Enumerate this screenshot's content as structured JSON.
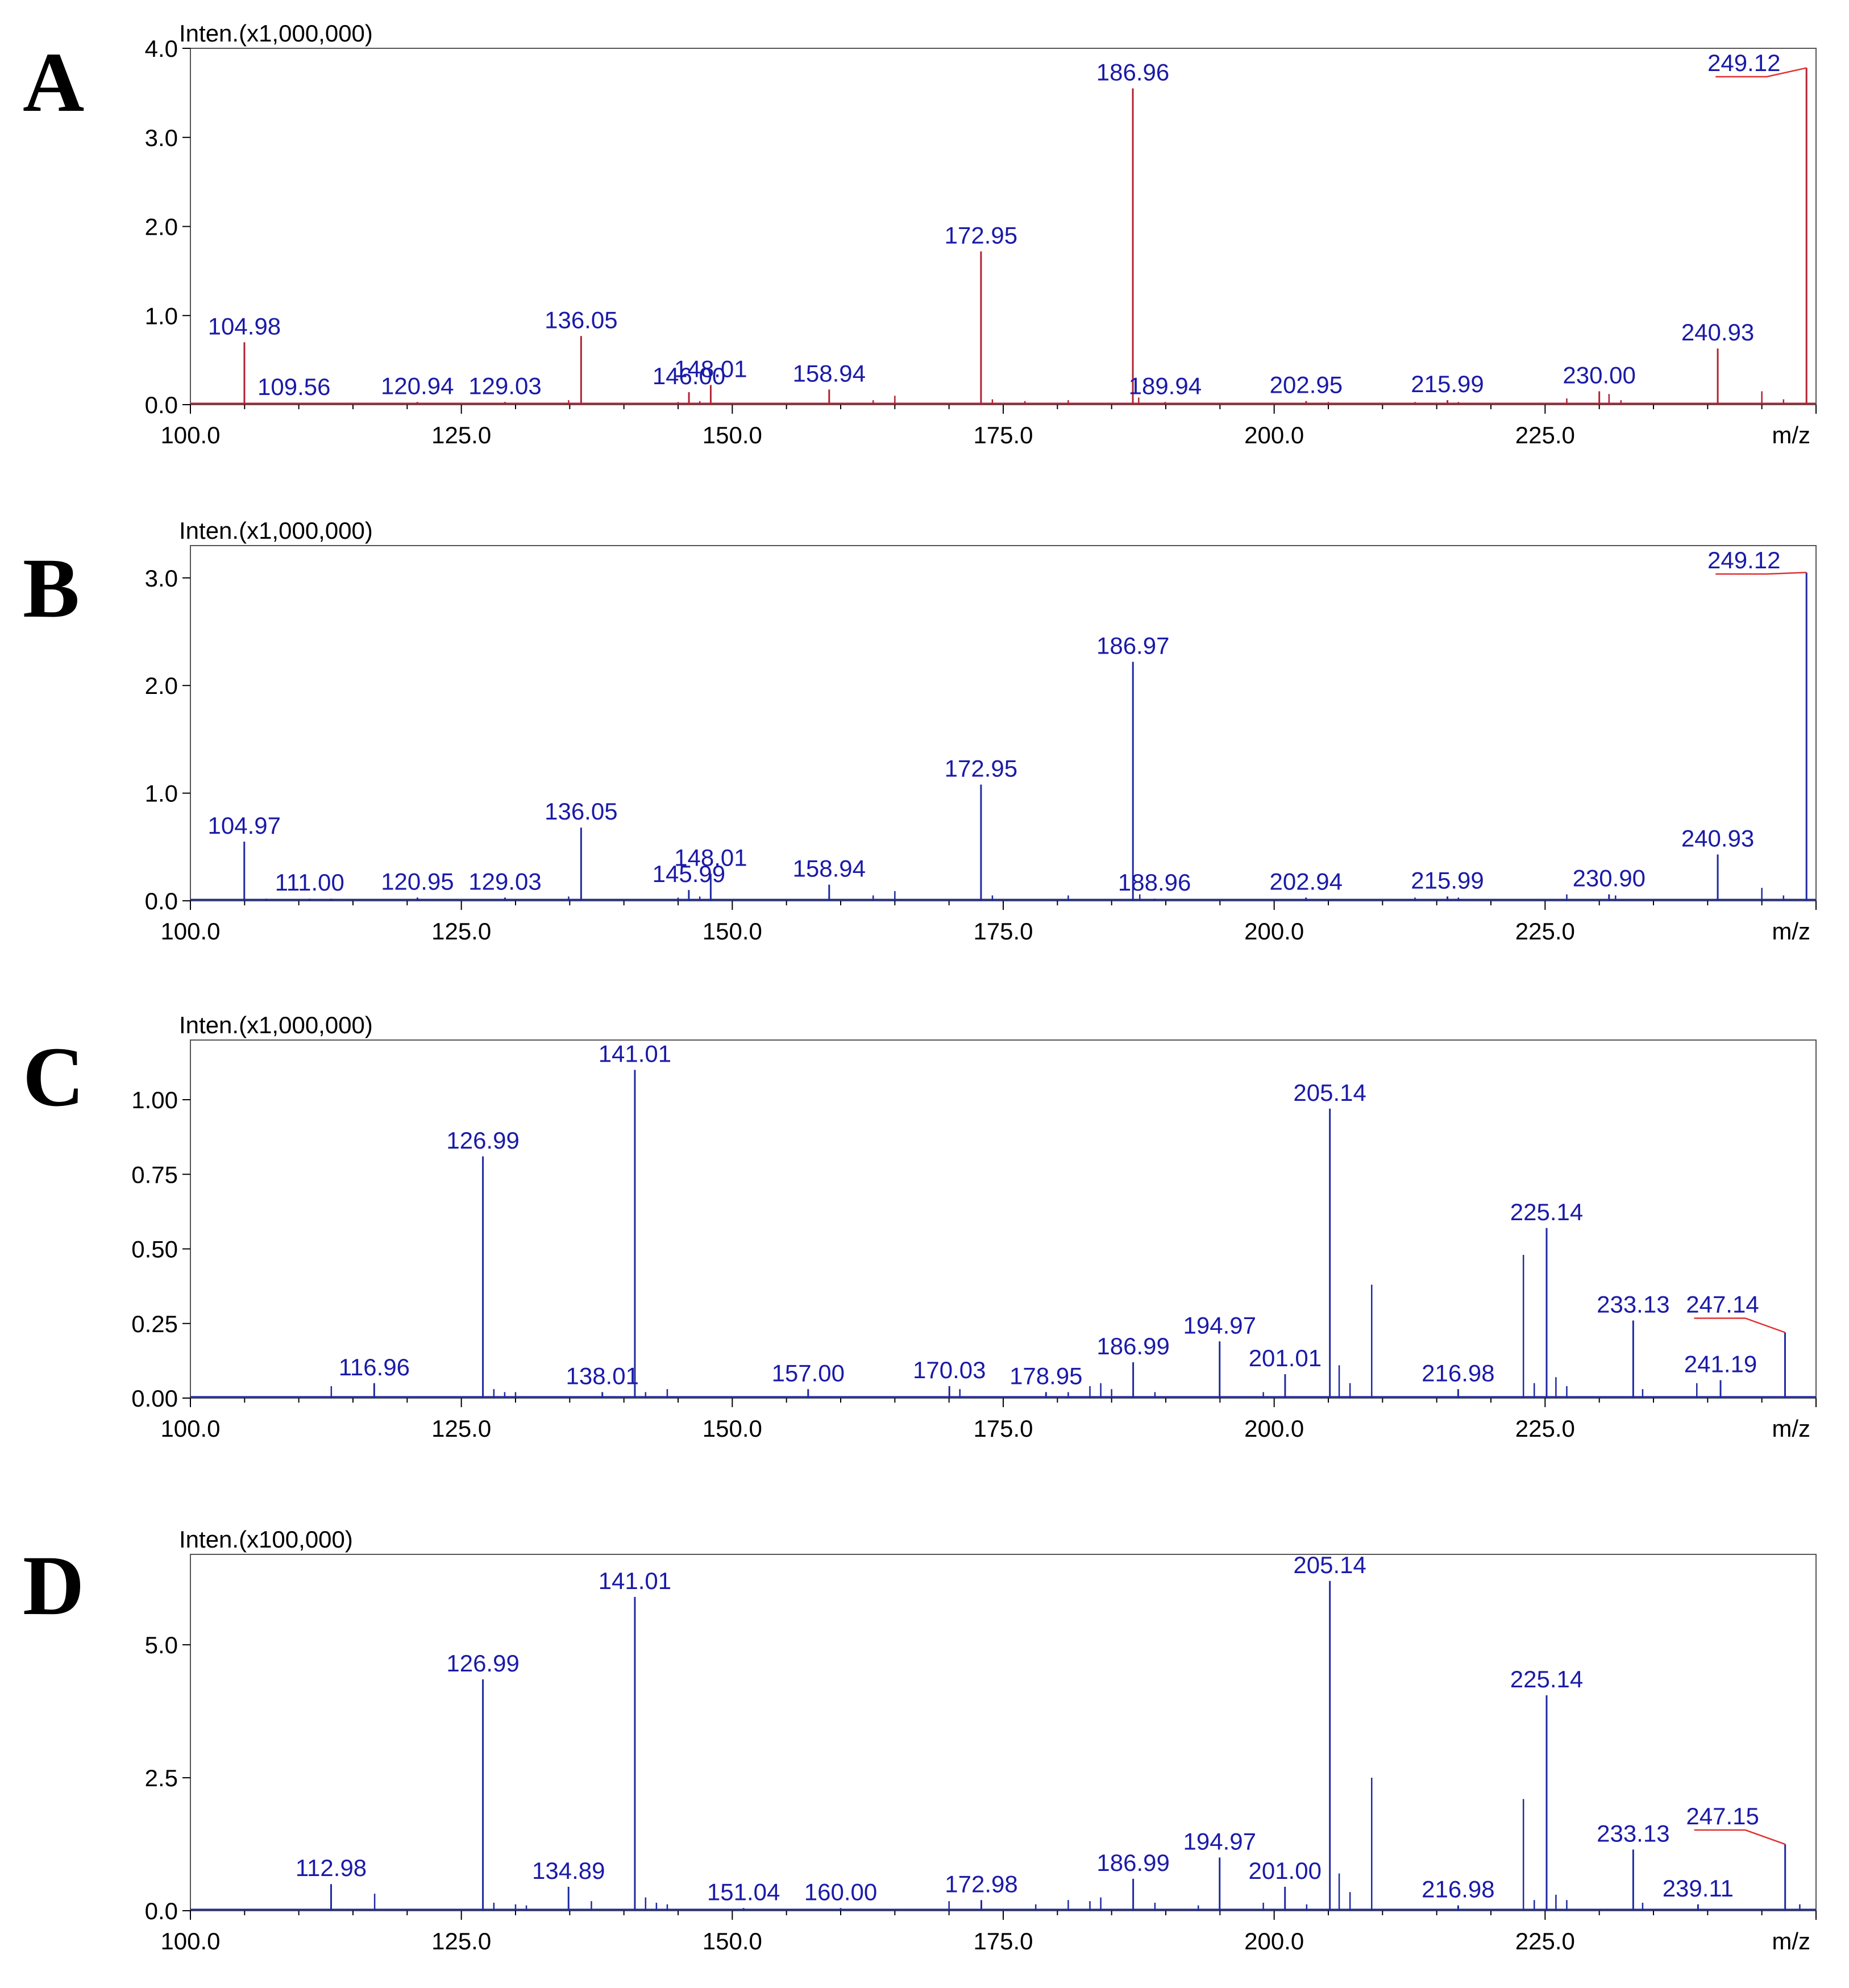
{
  "figure": {
    "colors": {
      "axis": "#000000",
      "label": "#1a1aa8",
      "peak_red": "#b22234",
      "peak_blue": "#1f2aa0",
      "annotation_red": "#e03030"
    }
  },
  "chart_data": [
    {
      "type": "bar",
      "panel": "A",
      "ylabel": "Inten.(x1,000,000)",
      "xlabel": "m/z",
      "xlim": [
        100,
        250
      ],
      "ylim": [
        0,
        4.0
      ],
      "yticks": [
        0.0,
        1.0,
        2.0,
        3.0,
        4.0
      ],
      "ytick_labels": [
        "0.0",
        "1.0",
        "2.0",
        "3.0",
        "4.0"
      ],
      "xticks": [
        100,
        125,
        150,
        175,
        200,
        225
      ],
      "xtick_labels": [
        "100.0",
        "125.0",
        "150.0",
        "175.0",
        "200.0",
        "225.0"
      ],
      "series_color": "#b22234",
      "peaks": [
        {
          "mz": 104.98,
          "intensity": 0.7,
          "label": "104.98"
        },
        {
          "mz": 109.56,
          "intensity": 0.02,
          "label": "109.56"
        },
        {
          "mz": 120.94,
          "intensity": 0.03,
          "label": "120.94"
        },
        {
          "mz": 129.03,
          "intensity": 0.03,
          "label": "129.03"
        },
        {
          "mz": 136.05,
          "intensity": 0.77,
          "label": "136.05"
        },
        {
          "mz": 146.0,
          "intensity": 0.14,
          "label": "146.00"
        },
        {
          "mz": 148.01,
          "intensity": 0.22,
          "label": "148.01"
        },
        {
          "mz": 158.94,
          "intensity": 0.17,
          "label": "158.94"
        },
        {
          "mz": 172.95,
          "intensity": 1.72,
          "label": "172.95"
        },
        {
          "mz": 186.96,
          "intensity": 3.55,
          "label": "186.96"
        },
        {
          "mz": 189.94,
          "intensity": 0.03,
          "label": "189.94"
        },
        {
          "mz": 202.95,
          "intensity": 0.04,
          "label": "202.95"
        },
        {
          "mz": 215.99,
          "intensity": 0.05,
          "label": "215.99"
        },
        {
          "mz": 230.0,
          "intensity": 0.15,
          "label": "230.00"
        },
        {
          "mz": 240.93,
          "intensity": 0.63,
          "label": "240.93"
        },
        {
          "mz": 249.12,
          "intensity": 3.78,
          "label": "249.12"
        },
        {
          "mz": 107.0,
          "intensity": 0.02
        },
        {
          "mz": 113.0,
          "intensity": 0.02
        },
        {
          "mz": 117.0,
          "intensity": 0.02
        },
        {
          "mz": 134.9,
          "intensity": 0.05
        },
        {
          "mz": 145.0,
          "intensity": 0.03
        },
        {
          "mz": 147.0,
          "intensity": 0.04
        },
        {
          "mz": 163.0,
          "intensity": 0.05
        },
        {
          "mz": 165.0,
          "intensity": 0.1
        },
        {
          "mz": 174.0,
          "intensity": 0.06
        },
        {
          "mz": 177.0,
          "intensity": 0.04
        },
        {
          "mz": 181.0,
          "intensity": 0.05
        },
        {
          "mz": 187.5,
          "intensity": 0.08
        },
        {
          "mz": 205.0,
          "intensity": 0.03
        },
        {
          "mz": 213.0,
          "intensity": 0.03
        },
        {
          "mz": 217.0,
          "intensity": 0.03
        },
        {
          "mz": 227.0,
          "intensity": 0.07
        },
        {
          "mz": 230.9,
          "intensity": 0.12
        },
        {
          "mz": 232.0,
          "intensity": 0.05
        },
        {
          "mz": 245.0,
          "intensity": 0.15
        },
        {
          "mz": 247.0,
          "intensity": 0.06
        }
      ]
    },
    {
      "type": "bar",
      "panel": "B",
      "ylabel": "Inten.(x1,000,000)",
      "xlabel": "m/z",
      "xlim": [
        100,
        250
      ],
      "ylim": [
        0,
        3.3
      ],
      "yticks": [
        0.0,
        1.0,
        2.0,
        3.0
      ],
      "ytick_labels": [
        "0.0",
        "1.0",
        "2.0",
        "3.0"
      ],
      "xticks": [
        100,
        125,
        150,
        175,
        200,
        225
      ],
      "xtick_labels": [
        "100.0",
        "125.0",
        "150.0",
        "175.0",
        "200.0",
        "225.0"
      ],
      "series_color": "#1f2aa0",
      "peaks": [
        {
          "mz": 104.97,
          "intensity": 0.55,
          "label": "104.97"
        },
        {
          "mz": 111.0,
          "intensity": 0.02,
          "label": "111.00"
        },
        {
          "mz": 120.95,
          "intensity": 0.03,
          "label": "120.95"
        },
        {
          "mz": 129.03,
          "intensity": 0.03,
          "label": "129.03"
        },
        {
          "mz": 136.05,
          "intensity": 0.68,
          "label": "136.05"
        },
        {
          "mz": 145.99,
          "intensity": 0.1,
          "label": "145.99"
        },
        {
          "mz": 148.01,
          "intensity": 0.25,
          "label": "148.01"
        },
        {
          "mz": 158.94,
          "intensity": 0.15,
          "label": "158.94"
        },
        {
          "mz": 172.95,
          "intensity": 1.08,
          "label": "172.95"
        },
        {
          "mz": 186.97,
          "intensity": 2.22,
          "label": "186.97"
        },
        {
          "mz": 188.96,
          "intensity": 0.02,
          "label": "188.96"
        },
        {
          "mz": 202.94,
          "intensity": 0.03,
          "label": "202.94"
        },
        {
          "mz": 215.99,
          "intensity": 0.04,
          "label": "215.99"
        },
        {
          "mz": 230.9,
          "intensity": 0.06,
          "label": "230.90"
        },
        {
          "mz": 240.93,
          "intensity": 0.43,
          "label": "240.93"
        },
        {
          "mz": 249.12,
          "intensity": 3.05,
          "label": "249.12"
        },
        {
          "mz": 107.0,
          "intensity": 0.02
        },
        {
          "mz": 113.0,
          "intensity": 0.02
        },
        {
          "mz": 134.9,
          "intensity": 0.04
        },
        {
          "mz": 145.0,
          "intensity": 0.03
        },
        {
          "mz": 147.0,
          "intensity": 0.04
        },
        {
          "mz": 163.0,
          "intensity": 0.05
        },
        {
          "mz": 165.0,
          "intensity": 0.09
        },
        {
          "mz": 174.0,
          "intensity": 0.05
        },
        {
          "mz": 181.0,
          "intensity": 0.05
        },
        {
          "mz": 187.6,
          "intensity": 0.06
        },
        {
          "mz": 213.0,
          "intensity": 0.03
        },
        {
          "mz": 217.0,
          "intensity": 0.03
        },
        {
          "mz": 227.0,
          "intensity": 0.06
        },
        {
          "mz": 231.5,
          "intensity": 0.05
        },
        {
          "mz": 245.0,
          "intensity": 0.12
        },
        {
          "mz": 247.0,
          "intensity": 0.05
        }
      ]
    },
    {
      "type": "bar",
      "panel": "C",
      "ylabel": "Inten.(x1,000,000)",
      "xlabel": "m/z",
      "xlim": [
        100,
        250
      ],
      "ylim": [
        0,
        1.2
      ],
      "yticks": [
        0.0,
        0.25,
        0.5,
        0.75,
        1.0
      ],
      "ytick_labels": [
        "0.00",
        "0.25",
        "0.50",
        "0.75",
        "1.00"
      ],
      "xticks": [
        100,
        125,
        150,
        175,
        200,
        225
      ],
      "xtick_labels": [
        "100.0",
        "125.0",
        "150.0",
        "175.0",
        "200.0",
        "225.0"
      ],
      "series_color": "#1f2aa0",
      "peaks": [
        {
          "mz": 116.96,
          "intensity": 0.05,
          "label": "116.96"
        },
        {
          "mz": 126.99,
          "intensity": 0.81,
          "label": "126.99"
        },
        {
          "mz": 138.01,
          "intensity": 0.02,
          "label": "138.01"
        },
        {
          "mz": 141.01,
          "intensity": 1.1,
          "label": "141.01"
        },
        {
          "mz": 157.0,
          "intensity": 0.03,
          "label": "157.00"
        },
        {
          "mz": 170.03,
          "intensity": 0.04,
          "label": "170.03"
        },
        {
          "mz": 178.95,
          "intensity": 0.02,
          "label": "178.95"
        },
        {
          "mz": 186.99,
          "intensity": 0.12,
          "label": "186.99"
        },
        {
          "mz": 194.97,
          "intensity": 0.19,
          "label": "194.97"
        },
        {
          "mz": 201.01,
          "intensity": 0.08,
          "label": "201.01"
        },
        {
          "mz": 205.14,
          "intensity": 0.97,
          "label": "205.14"
        },
        {
          "mz": 216.98,
          "intensity": 0.03,
          "label": "216.98"
        },
        {
          "mz": 225.14,
          "intensity": 0.57,
          "label": "225.14"
        },
        {
          "mz": 233.13,
          "intensity": 0.26,
          "label": "233.13"
        },
        {
          "mz": 241.19,
          "intensity": 0.06,
          "label": "241.19"
        },
        {
          "mz": 247.14,
          "intensity": 0.22,
          "label": "247.14"
        },
        {
          "mz": 113.0,
          "intensity": 0.04
        },
        {
          "mz": 128.0,
          "intensity": 0.03
        },
        {
          "mz": 129.0,
          "intensity": 0.02
        },
        {
          "mz": 130.0,
          "intensity": 0.02
        },
        {
          "mz": 142.0,
          "intensity": 0.02
        },
        {
          "mz": 144.0,
          "intensity": 0.03
        },
        {
          "mz": 171.0,
          "intensity": 0.03
        },
        {
          "mz": 181.0,
          "intensity": 0.02
        },
        {
          "mz": 183.0,
          "intensity": 0.04
        },
        {
          "mz": 184.0,
          "intensity": 0.05
        },
        {
          "mz": 185.0,
          "intensity": 0.03
        },
        {
          "mz": 189.0,
          "intensity": 0.02
        },
        {
          "mz": 199.0,
          "intensity": 0.02
        },
        {
          "mz": 206.0,
          "intensity": 0.11
        },
        {
          "mz": 207.0,
          "intensity": 0.05
        },
        {
          "mz": 209.0,
          "intensity": 0.38
        },
        {
          "mz": 223.0,
          "intensity": 0.48
        },
        {
          "mz": 224.0,
          "intensity": 0.05
        },
        {
          "mz": 226.0,
          "intensity": 0.07
        },
        {
          "mz": 227.0,
          "intensity": 0.04
        },
        {
          "mz": 234.0,
          "intensity": 0.03
        },
        {
          "mz": 239.0,
          "intensity": 0.05
        }
      ]
    },
    {
      "type": "bar",
      "panel": "D",
      "ylabel": "Inten.(x100,000)",
      "xlabel": "m/z",
      "xlim": [
        100,
        250
      ],
      "ylim": [
        0,
        6.7
      ],
      "yticks": [
        0.0,
        2.5,
        5.0
      ],
      "ytick_labels": [
        "0.0",
        "2.5",
        "5.0"
      ],
      "xticks": [
        100,
        125,
        150,
        175,
        200,
        225
      ],
      "xtick_labels": [
        "100.0",
        "125.0",
        "150.0",
        "175.0",
        "200.0",
        "225.0"
      ],
      "series_color": "#1f2aa0",
      "peaks": [
        {
          "mz": 112.98,
          "intensity": 0.5,
          "label": "112.98"
        },
        {
          "mz": 126.99,
          "intensity": 4.35,
          "label": "126.99"
        },
        {
          "mz": 134.89,
          "intensity": 0.45,
          "label": "134.89"
        },
        {
          "mz": 141.01,
          "intensity": 5.9,
          "label": "141.01"
        },
        {
          "mz": 151.04,
          "intensity": 0.05,
          "label": "151.04"
        },
        {
          "mz": 160.0,
          "intensity": 0.05,
          "label": "160.00"
        },
        {
          "mz": 172.98,
          "intensity": 0.2,
          "label": "172.98"
        },
        {
          "mz": 186.99,
          "intensity": 0.6,
          "label": "186.99"
        },
        {
          "mz": 194.97,
          "intensity": 1.0,
          "label": "194.97"
        },
        {
          "mz": 201.0,
          "intensity": 0.45,
          "label": "201.00"
        },
        {
          "mz": 205.14,
          "intensity": 6.2,
          "label": "205.14"
        },
        {
          "mz": 216.98,
          "intensity": 0.1,
          "label": "216.98"
        },
        {
          "mz": 225.14,
          "intensity": 4.05,
          "label": "225.14"
        },
        {
          "mz": 233.13,
          "intensity": 1.15,
          "label": "233.13"
        },
        {
          "mz": 239.11,
          "intensity": 0.12,
          "label": "239.11"
        },
        {
          "mz": 247.15,
          "intensity": 1.25,
          "label": "247.15"
        },
        {
          "mz": 117.0,
          "intensity": 0.32
        },
        {
          "mz": 128.0,
          "intensity": 0.15
        },
        {
          "mz": 130.0,
          "intensity": 0.12
        },
        {
          "mz": 131.0,
          "intensity": 0.1
        },
        {
          "mz": 137.0,
          "intensity": 0.18
        },
        {
          "mz": 142.0,
          "intensity": 0.25
        },
        {
          "mz": 143.0,
          "intensity": 0.15
        },
        {
          "mz": 144.0,
          "intensity": 0.12
        },
        {
          "mz": 170.0,
          "intensity": 0.18
        },
        {
          "mz": 178.0,
          "intensity": 0.12
        },
        {
          "mz": 181.0,
          "intensity": 0.2
        },
        {
          "mz": 183.0,
          "intensity": 0.18
        },
        {
          "mz": 184.0,
          "intensity": 0.25
        },
        {
          "mz": 189.0,
          "intensity": 0.15
        },
        {
          "mz": 193.0,
          "intensity": 0.1
        },
        {
          "mz": 199.0,
          "intensity": 0.15
        },
        {
          "mz": 203.0,
          "intensity": 0.12
        },
        {
          "mz": 206.0,
          "intensity": 0.7
        },
        {
          "mz": 207.0,
          "intensity": 0.35
        },
        {
          "mz": 209.0,
          "intensity": 2.5
        },
        {
          "mz": 223.0,
          "intensity": 2.1
        },
        {
          "mz": 224.0,
          "intensity": 0.2
        },
        {
          "mz": 226.0,
          "intensity": 0.3
        },
        {
          "mz": 227.0,
          "intensity": 0.2
        },
        {
          "mz": 234.0,
          "intensity": 0.15
        },
        {
          "mz": 248.5,
          "intensity": 0.12
        }
      ]
    }
  ]
}
